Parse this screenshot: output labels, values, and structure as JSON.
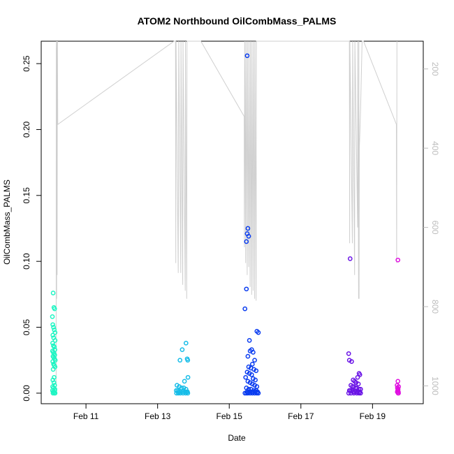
{
  "chart_data": {
    "type": "scatter",
    "title": "ATOM2 Northbound OilCombMass_PALMS",
    "xlabel": "Date",
    "ylabel": "OilCombMass_PALMS",
    "xlim": [
      "2017-02-09T18:00",
      "2017-02-20T10:00"
    ],
    "ylim": [
      -0.008,
      0.267
    ],
    "x_ticks": [
      {
        "label": "Feb 11",
        "date": "2017-02-11"
      },
      {
        "label": "Feb 13",
        "date": "2017-02-13"
      },
      {
        "label": "Feb 15",
        "date": "2017-02-15"
      },
      {
        "label": "Feb 17",
        "date": "2017-02-17"
      },
      {
        "label": "Feb 19",
        "date": "2017-02-19"
      }
    ],
    "y_ticks": [
      {
        "value": 0.0,
        "label": "0.00"
      },
      {
        "value": 0.05,
        "label": "0.05"
      },
      {
        "value": 0.1,
        "label": "0.10"
      },
      {
        "value": 0.15,
        "label": "0.15"
      },
      {
        "value": 0.2,
        "label": "0.20"
      },
      {
        "value": 0.25,
        "label": "0.25"
      }
    ],
    "secondary_axis": {
      "ylim": [
        1045,
        130
      ],
      "ticks": [
        {
          "value": 200,
          "label": "200"
        },
        {
          "value": 400,
          "label": "400"
        },
        {
          "value": 600,
          "label": "600"
        },
        {
          "value": 800,
          "label": "800"
        },
        {
          "value": 1000,
          "label": "1000"
        }
      ],
      "color": "#bdbdbd"
    },
    "grid": false,
    "legend": "none",
    "altitude_trace": {
      "color": "#cfcfcf",
      "points": [
        [
          "2017-02-10T04:00",
          1000
        ],
        [
          "2017-02-10T04:05",
          150
        ],
        [
          "2017-02-10T04:15",
          130
        ],
        [
          "2017-02-10T04:20",
          780
        ],
        [
          "2017-02-10T04:30",
          130
        ],
        [
          "2017-02-10T04:40",
          720
        ],
        [
          "2017-02-10T04:55",
          130
        ],
        [
          "2017-02-10T05:05",
          340
        ],
        [
          "2017-02-13T11:00",
          130
        ],
        [
          "2017-02-13T12:00",
          125
        ],
        [
          "2017-02-13T12:10",
          690
        ],
        [
          "2017-02-13T12:20",
          130
        ],
        [
          "2017-02-13T13:50",
          715
        ],
        [
          "2017-02-13T14:10",
          130
        ],
        [
          "2017-02-13T15:30",
          715
        ],
        [
          "2017-02-13T15:40",
          130
        ],
        [
          "2017-02-13T16:50",
          745
        ],
        [
          "2017-02-13T17:00",
          130
        ],
        [
          "2017-02-13T18:30",
          760
        ],
        [
          "2017-02-13T18:40",
          130
        ],
        [
          "2017-02-13T19:30",
          780
        ],
        [
          "2017-02-13T19:40",
          130
        ],
        [
          "2017-02-13T20:00",
          130
        ],
        [
          "2017-02-13T20:10",
          125
        ],
        [
          "2017-02-13T22:00",
          125
        ],
        [
          "2017-02-14T05:00",
          125
        ],
        [
          "2017-02-15T10:00",
          320
        ],
        [
          "2017-02-15T10:10",
          650
        ],
        [
          "2017-02-15T10:20",
          130
        ],
        [
          "2017-02-15T11:00",
          690
        ],
        [
          "2017-02-15T11:10",
          130
        ],
        [
          "2017-02-15T12:00",
          720
        ],
        [
          "2017-02-15T12:10",
          130
        ],
        [
          "2017-02-15T13:00",
          700
        ],
        [
          "2017-02-15T13:10",
          130
        ],
        [
          "2017-02-15T14:00",
          750
        ],
        [
          "2017-02-15T14:10",
          130
        ],
        [
          "2017-02-15T15:00",
          770
        ],
        [
          "2017-02-15T15:10",
          130
        ],
        [
          "2017-02-15T16:00",
          760
        ],
        [
          "2017-02-15T16:10",
          130
        ],
        [
          "2017-02-15T17:00",
          780
        ],
        [
          "2017-02-15T17:10",
          130
        ],
        [
          "2017-02-15T18:00",
          785
        ],
        [
          "2017-02-15T18:10",
          130
        ],
        [
          "2017-02-15T18:20",
          125
        ],
        [
          "2017-02-18T07:00",
          125
        ],
        [
          "2017-02-18T08:30",
          125
        ],
        [
          "2017-02-18T08:40",
          640
        ],
        [
          "2017-02-18T08:50",
          130
        ],
        [
          "2017-02-18T10:30",
          640
        ],
        [
          "2017-02-18T10:40",
          130
        ],
        [
          "2017-02-18T12:00",
          720
        ],
        [
          "2017-02-18T12:10",
          130
        ],
        [
          "2017-02-18T14:00",
          600
        ],
        [
          "2017-02-18T14:10",
          130
        ],
        [
          "2017-02-18T14:40",
          780
        ],
        [
          "2017-02-18T14:50",
          130
        ],
        [
          "2017-02-18T15:00",
          780
        ],
        [
          "2017-02-18T15:10",
          400
        ],
        [
          "2017-02-18T16:00",
          300
        ],
        [
          "2017-02-18T17:00",
          130
        ],
        [
          "2017-02-18T18:00",
          125
        ],
        [
          "2017-02-19T16:00",
          340
        ],
        [
          "2017-02-19T16:10",
          690
        ],
        [
          "2017-02-19T16:20",
          130
        ]
      ]
    },
    "series": [
      {
        "color": "#1ef5c3",
        "points": [
          [
            "2017-02-10T02:00",
            0.076
          ],
          [
            "2017-02-10T02:30",
            0.065
          ],
          [
            "2017-02-10T03:00",
            0.064
          ],
          [
            "2017-02-10T01:30",
            0.058
          ],
          [
            "2017-02-10T01:45",
            0.052
          ],
          [
            "2017-02-10T02:15",
            0.05
          ],
          [
            "2017-02-10T02:45",
            0.048
          ],
          [
            "2017-02-10T03:15",
            0.046
          ],
          [
            "2017-02-10T01:50",
            0.044
          ],
          [
            "2017-02-10T02:20",
            0.042
          ],
          [
            "2017-02-10T03:20",
            0.04
          ],
          [
            "2017-02-10T01:40",
            0.038
          ],
          [
            "2017-02-10T02:10",
            0.036
          ],
          [
            "2017-02-10T02:50",
            0.035
          ],
          [
            "2017-02-10T03:10",
            0.033
          ],
          [
            "2017-02-10T01:35",
            0.032
          ],
          [
            "2017-02-10T02:05",
            0.031
          ],
          [
            "2017-02-10T02:35",
            0.03
          ],
          [
            "2017-02-10T03:05",
            0.029
          ],
          [
            "2017-02-10T01:55",
            0.028
          ],
          [
            "2017-02-10T02:25",
            0.027
          ],
          [
            "2017-02-10T02:55",
            0.026
          ],
          [
            "2017-02-10T03:25",
            0.025
          ],
          [
            "2017-02-10T01:45",
            0.024
          ],
          [
            "2017-02-10T02:15",
            0.022
          ],
          [
            "2017-02-10T02:45",
            0.021
          ],
          [
            "2017-02-10T03:15",
            0.02
          ],
          [
            "2017-02-10T02:00",
            0.018
          ],
          [
            "2017-02-10T02:40",
            0.012
          ],
          [
            "2017-02-10T01:50",
            0.01
          ],
          [
            "2017-02-10T02:30",
            0.008
          ],
          [
            "2017-02-10T03:00",
            0.006
          ],
          [
            "2017-02-10T01:40",
            0.005
          ],
          [
            "2017-02-10T02:20",
            0.004
          ],
          [
            "2017-02-10T03:10",
            0.003
          ],
          [
            "2017-02-10T01:35",
            0.002
          ],
          [
            "2017-02-10T02:10",
            0.001
          ],
          [
            "2017-02-10T02:50",
            0.0
          ],
          [
            "2017-02-10T03:20",
            0.0
          ],
          [
            "2017-02-10T01:55",
            0.0
          ],
          [
            "2017-02-10T02:35",
            0.001
          ],
          [
            "2017-02-10T03:05",
            0.002
          ]
        ]
      },
      {
        "color": "#17bde8",
        "points": [
          [
            "2017-02-13T19:00",
            0.038
          ],
          [
            "2017-02-13T16:30",
            0.033
          ],
          [
            "2017-02-13T15:00",
            0.025
          ],
          [
            "2017-02-13T19:50",
            0.026
          ],
          [
            "2017-02-13T20:10",
            0.025
          ],
          [
            "2017-02-13T20:20",
            0.012
          ],
          [
            "2017-02-13T18:00",
            0.009
          ],
          [
            "2017-02-13T13:00",
            0.006
          ],
          [
            "2017-02-13T14:30",
            0.005
          ],
          [
            "2017-02-13T16:00",
            0.004
          ],
          [
            "2017-02-13T17:30",
            0.004
          ],
          [
            "2017-02-13T19:00",
            0.003
          ],
          [
            "2017-02-13T12:30",
            0.002
          ],
          [
            "2017-02-13T13:30",
            0.002
          ],
          [
            "2017-02-13T14:00",
            0.001
          ],
          [
            "2017-02-13T15:30",
            0.001
          ],
          [
            "2017-02-13T16:50",
            0.001
          ],
          [
            "2017-02-13T18:30",
            0.001
          ],
          [
            "2017-02-13T19:30",
            0.001
          ],
          [
            "2017-02-13T20:00",
            0.001
          ],
          [
            "2017-02-13T12:40",
            0.0
          ],
          [
            "2017-02-13T13:50",
            0.0
          ],
          [
            "2017-02-13T15:10",
            0.0
          ],
          [
            "2017-02-13T17:00",
            0.0
          ],
          [
            "2017-02-13T18:50",
            0.0
          ],
          [
            "2017-02-13T20:15",
            0.0
          ]
        ]
      },
      {
        "color": "#0a3cf0",
        "points": [
          [
            "2017-02-15T12:00",
            0.256
          ],
          [
            "2017-02-15T12:30",
            0.125
          ],
          [
            "2017-02-15T12:00",
            0.121
          ],
          [
            "2017-02-15T13:00",
            0.119
          ],
          [
            "2017-02-15T11:30",
            0.115
          ],
          [
            "2017-02-15T11:30",
            0.079
          ],
          [
            "2017-02-15T10:30",
            0.064
          ],
          [
            "2017-02-15T18:30",
            0.047
          ],
          [
            "2017-02-15T19:30",
            0.046
          ],
          [
            "2017-02-15T13:30",
            0.04
          ],
          [
            "2017-02-15T15:00",
            0.033
          ],
          [
            "2017-02-15T14:00",
            0.032
          ],
          [
            "2017-02-15T16:00",
            0.031
          ],
          [
            "2017-02-15T12:30",
            0.028
          ],
          [
            "2017-02-15T17:00",
            0.025
          ],
          [
            "2017-02-15T15:30",
            0.022
          ],
          [
            "2017-02-15T13:00",
            0.02
          ],
          [
            "2017-02-15T14:30",
            0.019
          ],
          [
            "2017-02-15T16:30",
            0.018
          ],
          [
            "2017-02-15T18:00",
            0.017
          ],
          [
            "2017-02-15T12:00",
            0.016
          ],
          [
            "2017-02-15T13:30",
            0.015
          ],
          [
            "2017-02-15T15:00",
            0.014
          ],
          [
            "2017-02-15T11:00",
            0.012
          ],
          [
            "2017-02-15T16:00",
            0.011
          ],
          [
            "2017-02-15T17:30",
            0.01
          ],
          [
            "2017-02-15T12:30",
            0.009
          ],
          [
            "2017-02-15T14:00",
            0.008
          ],
          [
            "2017-02-15T15:30",
            0.007
          ],
          [
            "2017-02-15T17:00",
            0.006
          ],
          [
            "2017-02-15T18:30",
            0.005
          ],
          [
            "2017-02-15T11:30",
            0.004
          ],
          [
            "2017-02-15T13:00",
            0.003
          ],
          [
            "2017-02-15T14:30",
            0.003
          ],
          [
            "2017-02-15T16:30",
            0.002
          ],
          [
            "2017-02-15T18:00",
            0.002
          ],
          [
            "2017-02-15T12:00",
            0.001
          ],
          [
            "2017-02-15T13:30",
            0.001
          ],
          [
            "2017-02-15T15:00",
            0.001
          ],
          [
            "2017-02-15T16:00",
            0.001
          ],
          [
            "2017-02-15T17:30",
            0.001
          ],
          [
            "2017-02-15T19:00",
            0.001
          ],
          [
            "2017-02-15T10:30",
            0.0
          ],
          [
            "2017-02-15T11:30",
            0.0
          ],
          [
            "2017-02-15T12:30",
            0.0
          ],
          [
            "2017-02-15T14:00",
            0.0
          ],
          [
            "2017-02-15T15:30",
            0.0
          ],
          [
            "2017-02-15T17:00",
            0.0
          ],
          [
            "2017-02-15T18:30",
            0.0
          ],
          [
            "2017-02-15T19:30",
            0.0
          ]
        ]
      },
      {
        "color": "#6a14e6",
        "points": [
          [
            "2017-02-18T09:00",
            0.102
          ],
          [
            "2017-02-18T08:00",
            0.03
          ],
          [
            "2017-02-18T08:30",
            0.025
          ],
          [
            "2017-02-18T10:00",
            0.024
          ],
          [
            "2017-02-18T15:00",
            0.015
          ],
          [
            "2017-02-18T15:30",
            0.014
          ],
          [
            "2017-02-18T14:00",
            0.012
          ],
          [
            "2017-02-18T11:00",
            0.01
          ],
          [
            "2017-02-18T12:00",
            0.009
          ],
          [
            "2017-02-18T13:00",
            0.008
          ],
          [
            "2017-02-18T14:30",
            0.007
          ],
          [
            "2017-02-18T09:30",
            0.006
          ],
          [
            "2017-02-18T10:30",
            0.005
          ],
          [
            "2017-02-18T11:30",
            0.005
          ],
          [
            "2017-02-18T12:30",
            0.004
          ],
          [
            "2017-02-18T13:30",
            0.004
          ],
          [
            "2017-02-18T15:00",
            0.003
          ],
          [
            "2017-02-18T16:00",
            0.003
          ],
          [
            "2017-02-18T08:30",
            0.002
          ],
          [
            "2017-02-18T09:00",
            0.002
          ],
          [
            "2017-02-18T10:00",
            0.002
          ],
          [
            "2017-02-18T11:00",
            0.001
          ],
          [
            "2017-02-18T12:00",
            0.001
          ],
          [
            "2017-02-18T13:00",
            0.001
          ],
          [
            "2017-02-18T14:00",
            0.001
          ],
          [
            "2017-02-18T15:30",
            0.001
          ],
          [
            "2017-02-18T08:00",
            0.0
          ],
          [
            "2017-02-18T09:30",
            0.0
          ],
          [
            "2017-02-18T11:30",
            0.0
          ],
          [
            "2017-02-18T13:30",
            0.0
          ],
          [
            "2017-02-18T15:00",
            0.0
          ],
          [
            "2017-02-18T16:00",
            0.0
          ]
        ]
      },
      {
        "color": "#e010e0",
        "points": [
          [
            "2017-02-19T17:00",
            0.101
          ],
          [
            "2017-02-19T17:00",
            0.009
          ],
          [
            "2017-02-19T16:30",
            0.006
          ],
          [
            "2017-02-19T17:30",
            0.005
          ],
          [
            "2017-02-19T16:40",
            0.004
          ],
          [
            "2017-02-19T17:10",
            0.003
          ],
          [
            "2017-02-19T16:50",
            0.002
          ],
          [
            "2017-02-19T17:20",
            0.001
          ],
          [
            "2017-02-19T16:35",
            0.001
          ],
          [
            "2017-02-19T17:05",
            0.0
          ],
          [
            "2017-02-19T17:25",
            0.0
          ]
        ]
      }
    ]
  }
}
